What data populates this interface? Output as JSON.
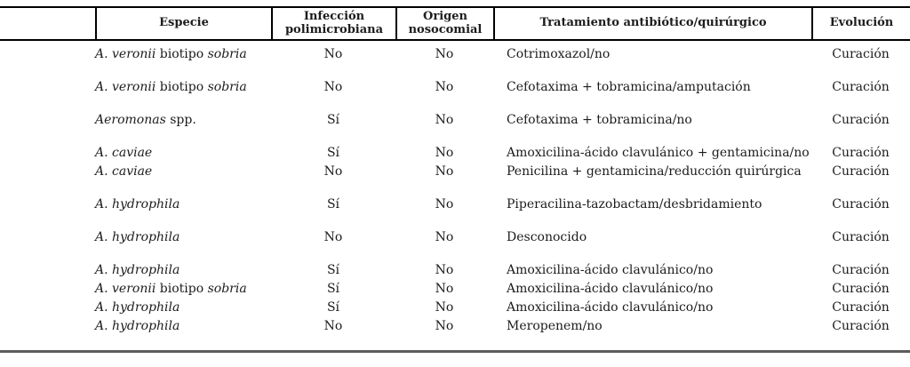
{
  "colors": {
    "background": "#ffffff",
    "text": "#1c1c1c",
    "header_rule": "#000000",
    "bottom_rule": "#5c5c5c"
  },
  "table": {
    "columns": [
      {
        "label": ""
      },
      {
        "label": "Especie"
      },
      {
        "label": "Infección polimicrobiana"
      },
      {
        "label": "Origen nosocomial"
      },
      {
        "label": "Tratamiento antibiótico/quirúrgico"
      },
      {
        "label": "Evolución"
      }
    ],
    "rows": [
      {
        "species": [
          {
            "t": "A. veronii",
            "i": true
          },
          {
            "t": " biotipo ",
            "i": false
          },
          {
            "t": "sobria",
            "i": true
          }
        ],
        "polymicrobial": "No",
        "nosocomial": "No",
        "treatment": "Cotrimoxazol/no",
        "outcome": "Curación",
        "gap_before": false
      },
      {
        "species": [
          {
            "t": "A. veronii",
            "i": true
          },
          {
            "t": " biotipo ",
            "i": false
          },
          {
            "t": "sobria",
            "i": true
          }
        ],
        "polymicrobial": "No",
        "nosocomial": "No",
        "treatment": "Cefotaxima + tobramicina/amputación",
        "outcome": "Curación",
        "gap_before": true
      },
      {
        "species": [
          {
            "t": "Aeromonas",
            "i": true
          },
          {
            "t": " spp.",
            "i": false
          }
        ],
        "polymicrobial": "Sí",
        "nosocomial": "No",
        "treatment": "Cefotaxima + tobramicina/no",
        "outcome": "Curación",
        "gap_before": true
      },
      {
        "species": [
          {
            "t": "A. caviae",
            "i": true
          }
        ],
        "polymicrobial": "Sí",
        "nosocomial": "No",
        "treatment": "Amoxicilina-ácido clavulánico + gentamicina/no",
        "outcome": "Curación",
        "gap_before": true
      },
      {
        "species": [
          {
            "t": "A. caviae",
            "i": true
          }
        ],
        "polymicrobial": "No",
        "nosocomial": "No",
        "treatment": "Penicilina + gentamicina/reducción quirúrgica",
        "outcome": "Curación",
        "gap_before": false
      },
      {
        "species": [
          {
            "t": "A. hydrophila",
            "i": true
          }
        ],
        "polymicrobial": "Sí",
        "nosocomial": "No",
        "treatment": "Piperacilina-tazobactam/desbridamiento",
        "outcome": "Curación",
        "gap_before": true
      },
      {
        "species": [
          {
            "t": "A. hydrophila",
            "i": true
          }
        ],
        "polymicrobial": "No",
        "nosocomial": "No",
        "treatment": "Desconocido",
        "outcome": "Curación",
        "gap_before": true
      },
      {
        "species": [
          {
            "t": "A. hydrophila",
            "i": true
          }
        ],
        "polymicrobial": "Sí",
        "nosocomial": "No",
        "treatment": "Amoxicilina-ácido clavulánico/no",
        "outcome": "Curación",
        "gap_before": true
      },
      {
        "species": [
          {
            "t": "A. veronii",
            "i": true
          },
          {
            "t": " biotipo ",
            "i": false
          },
          {
            "t": "sobria",
            "i": true
          }
        ],
        "polymicrobial": "Sí",
        "nosocomial": "No",
        "treatment": "Amoxicilina-ácido clavulánico/no",
        "outcome": "Curación",
        "gap_before": false
      },
      {
        "species": [
          {
            "t": "A. hydrophila",
            "i": true
          }
        ],
        "polymicrobial": "Sí",
        "nosocomial": "No",
        "treatment": "Amoxicilina-ácido clavulánico/no",
        "outcome": "Curación",
        "gap_before": false
      },
      {
        "species": [
          {
            "t": "A. hydrophila",
            "i": true
          }
        ],
        "polymicrobial": "No",
        "nosocomial": "No",
        "treatment": "Meropenem/no",
        "outcome": "Curación",
        "gap_before": false
      }
    ]
  }
}
